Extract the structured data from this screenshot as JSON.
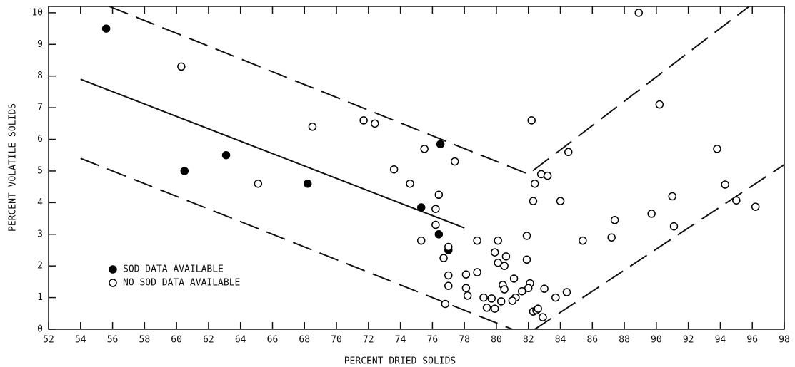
{
  "chart_data": {
    "type": "scatter",
    "x_label": "PERCENT DRIED SOLIDS",
    "y_label": "PERCENT VOLATILE SOLIDS",
    "xlim": [
      52,
      98
    ],
    "ylim": [
      0,
      10.2
    ],
    "xticks": [
      52,
      54,
      56,
      58,
      60,
      62,
      64,
      66,
      68,
      70,
      72,
      74,
      76,
      78,
      80,
      82,
      84,
      86,
      88,
      90,
      92,
      94,
      96,
      98
    ],
    "yticks": [
      0,
      1,
      2,
      3,
      4,
      5,
      6,
      7,
      8,
      9,
      10
    ],
    "legend": "lower-left",
    "series": [
      {
        "name": "SOD DATA AVAILABLE",
        "marker": "filled",
        "color": "#000000",
        "x": [
          55.6,
          60.5,
          63.1,
          68.2,
          75.3,
          76.5,
          76.4,
          77.0
        ],
        "y": [
          9.5,
          5.0,
          5.5,
          4.6,
          3.85,
          5.85,
          3.0,
          2.5
        ]
      },
      {
        "name": "NO SOD DATA AVAILABLE",
        "marker": "hollow",
        "color": "#000000",
        "x": [
          60.3,
          65.1,
          68.5,
          71.7,
          72.4,
          73.6,
          74.6,
          75.5,
          75.3,
          76.4,
          76.2,
          76.2,
          76.7,
          77.0,
          77.0,
          77.0,
          76.8,
          77.4,
          78.1,
          78.1,
          78.2,
          78.8,
          78.8,
          79.2,
          79.4,
          79.7,
          79.9,
          80.1,
          79.9,
          80.1,
          80.5,
          80.6,
          80.4,
          80.5,
          80.3,
          81.1,
          81.2,
          81.0,
          81.6,
          82.1,
          82.0,
          81.9,
          81.9,
          82.2,
          82.4,
          82.3,
          82.8,
          83.2,
          82.3,
          82.5,
          82.6,
          82.9,
          83.0,
          83.7,
          84.4,
          84.0,
          84.5,
          85.4,
          87.2,
          87.4,
          88.9,
          89.7,
          90.2,
          91.0,
          91.1,
          93.8,
          94.3,
          95.0,
          96.2
        ],
        "y": [
          8.3,
          4.6,
          6.4,
          6.6,
          6.5,
          5.05,
          4.6,
          5.7,
          2.8,
          4.25,
          3.8,
          3.3,
          2.25,
          2.6,
          1.7,
          1.37,
          0.8,
          5.3,
          1.73,
          1.3,
          1.06,
          2.8,
          1.8,
          1.0,
          0.68,
          0.97,
          0.65,
          2.8,
          2.43,
          2.1,
          2.0,
          2.3,
          1.4,
          1.26,
          0.88,
          1.6,
          1.0,
          0.9,
          1.2,
          1.45,
          1.3,
          2.2,
          2.95,
          6.6,
          4.6,
          4.05,
          4.9,
          4.85,
          0.56,
          0.6,
          0.65,
          0.38,
          1.28,
          1.0,
          1.17,
          4.05,
          5.6,
          2.8,
          2.9,
          3.45,
          10.0,
          3.65,
          7.1,
          4.2,
          3.25,
          5.7,
          4.57,
          4.07,
          3.87
        ]
      }
    ],
    "lines": [
      {
        "style": "solid",
        "x": [
          54,
          78
        ],
        "y": [
          7.9,
          3.2
        ]
      },
      {
        "style": "dashed",
        "x": [
          55.8,
          82,
          95.8
        ],
        "y": [
          10.2,
          4.9,
          10.2
        ]
      },
      {
        "style": "dashed",
        "x": [
          54,
          81
        ],
        "y": [
          5.4,
          0
        ]
      },
      {
        "style": "dashed",
        "x": [
          82.4,
          98
        ],
        "y": [
          0,
          5.2
        ]
      }
    ]
  }
}
